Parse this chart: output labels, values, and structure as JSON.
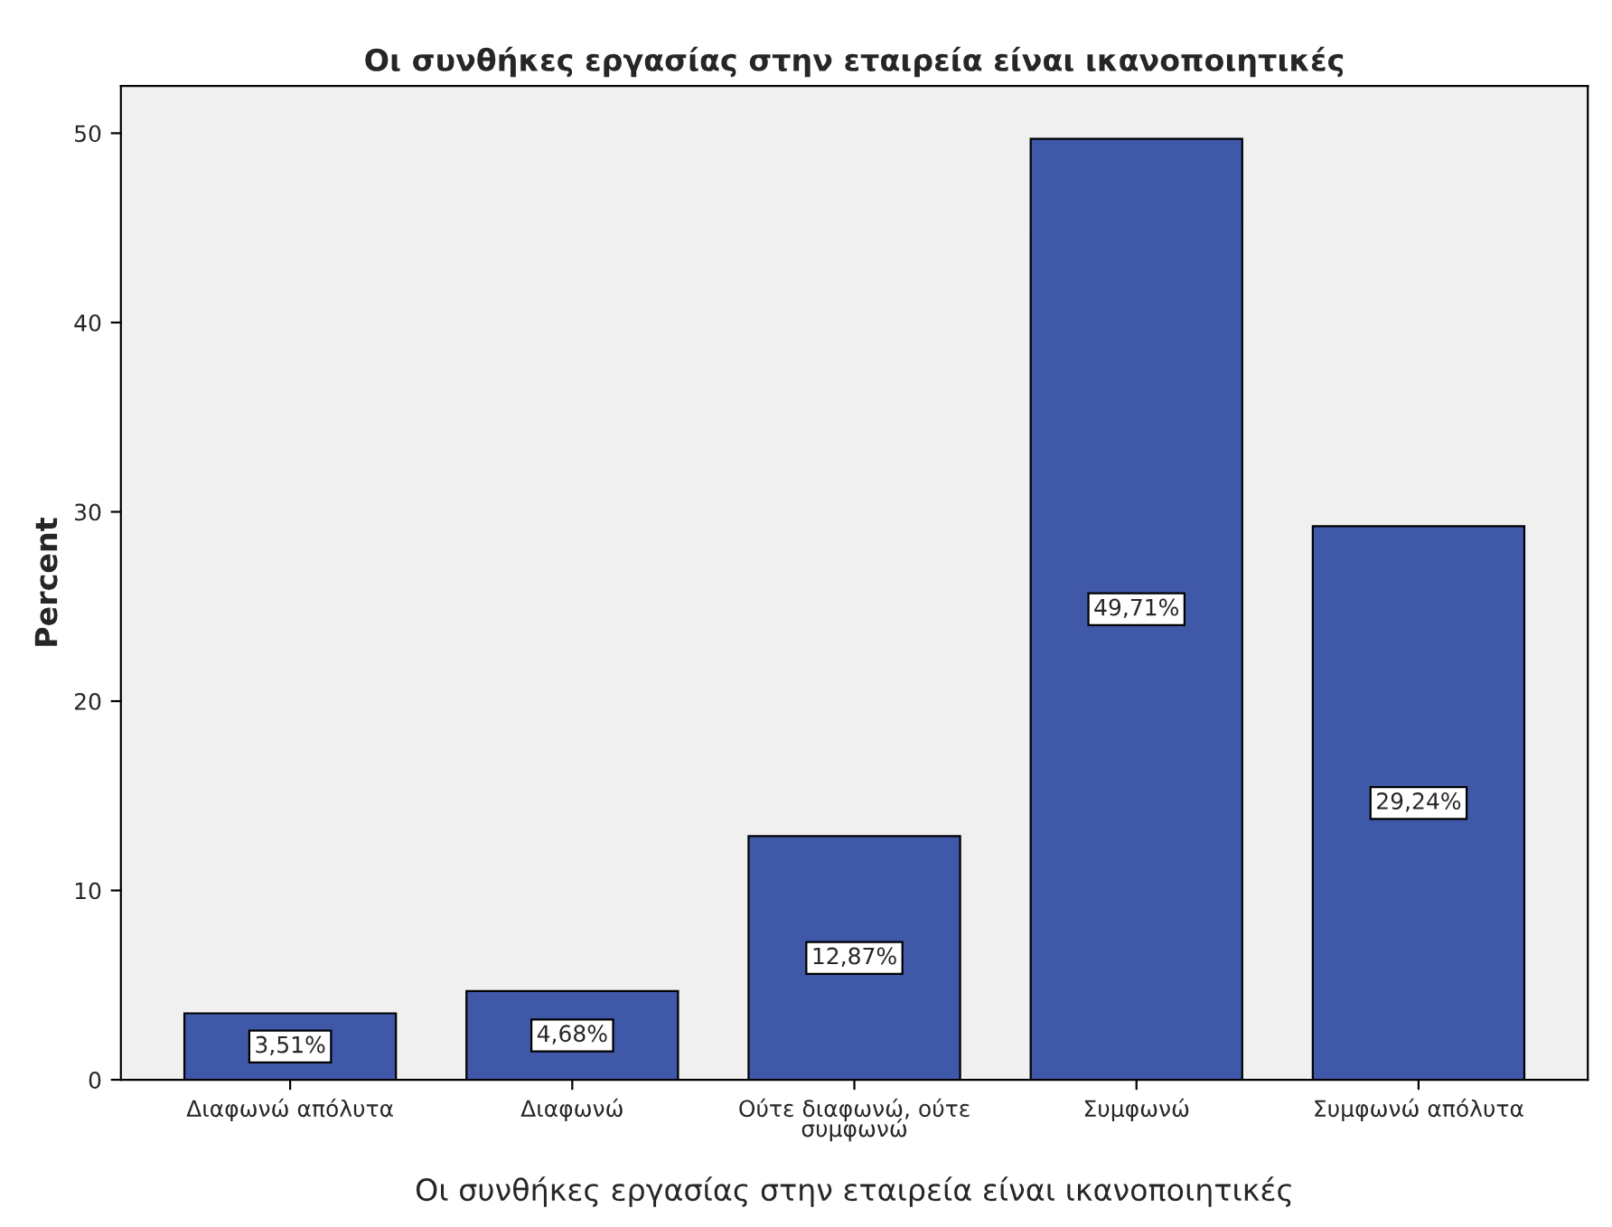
{
  "chart_data": {
    "type": "bar",
    "title": "Οι συνθήκες εργασίας στην εταιρεία είναι ικανοποιητικές",
    "xlabel": "Οι συνθήκες εργασίας στην εταιρεία είναι ικανοποιητικές",
    "ylabel": "Percent",
    "categories": [
      "Διαφωνώ απόλυτα",
      "Διαφωνώ",
      "Ούτε διαφωνώ, ούτε\nσυμφωνώ",
      "Συμφωνώ",
      "Συμφωνώ απόλυτα"
    ],
    "values": [
      3.51,
      4.68,
      12.87,
      49.71,
      29.24
    ],
    "value_labels": [
      "3,51%",
      "4,68%",
      "12,87%",
      "49,71%",
      "29,24%"
    ],
    "color": "#3f58a8",
    "ylim": [
      0,
      52.5
    ],
    "yticks": [
      0,
      10,
      20,
      30,
      40,
      50
    ],
    "grid": false,
    "legend": false
  }
}
